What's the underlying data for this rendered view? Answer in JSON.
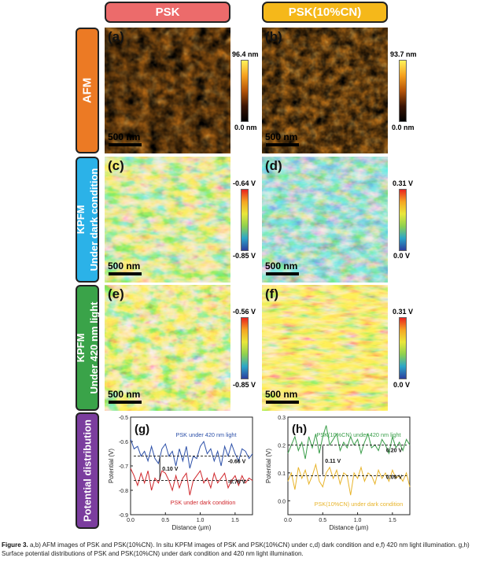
{
  "columns": {
    "left": "PSK",
    "right": "PSK(10%CN)"
  },
  "rows": {
    "afm": "AFM",
    "kpfm_dark_1": "KPFM",
    "kpfm_dark_2": "Under dark condition",
    "kpfm_light_1": "KPFM",
    "kpfm_light_2": "Under 420 nm light",
    "potential": "Potential distribution"
  },
  "panels": {
    "a": {
      "label": "(a)",
      "scale": "500 nm",
      "cb_top": "96.4 nm",
      "cb_bottom": "0.0 nm"
    },
    "b": {
      "label": "(b)",
      "scale": "500 nm",
      "cb_top": "93.7 nm",
      "cb_bottom": "0.0 nm"
    },
    "c": {
      "label": "(c)",
      "scale": "500 nm",
      "cb_top": "-0.64 V",
      "cb_bottom": "-0.85 V"
    },
    "d": {
      "label": "(d)",
      "scale": "500 nm",
      "cb_top": "0.31 V",
      "cb_bottom": "0.0 V"
    },
    "e": {
      "label": "(e)",
      "scale": "500 nm",
      "cb_top": "-0.56 V",
      "cb_bottom": "-0.85 V"
    },
    "f": {
      "label": "(f)",
      "scale": "500 nm",
      "cb_top": "0.31 V",
      "cb_bottom": "0.0 V"
    }
  },
  "colors": {
    "psk": "#ec6b6b",
    "cn": "#f5b81a",
    "afm": "#ec7a24",
    "dark": "#2bb2e8",
    "light": "#3aa349",
    "pot": "#7b3d9e"
  },
  "chart_data": [
    {
      "type": "line",
      "label": "(g)",
      "xlabel": "Distance (μm)",
      "ylabel": "Potential (V)",
      "xlim": [
        0.0,
        1.75
      ],
      "ylim": [
        -0.9,
        -0.5
      ],
      "xticks": [
        "0.0",
        "0.5",
        "1.0",
        "1.5"
      ],
      "yticks": [
        "-0.9",
        "-0.8",
        "-0.7",
        "-0.6",
        "-0.5"
      ],
      "series": [
        {
          "name": "PSK under 420 nm light",
          "color": "#2b4fa8",
          "mean": -0.66,
          "x": [
            0.0,
            0.05,
            0.1,
            0.15,
            0.2,
            0.25,
            0.3,
            0.35,
            0.4,
            0.45,
            0.5,
            0.55,
            0.6,
            0.65,
            0.7,
            0.75,
            0.8,
            0.85,
            0.9,
            0.95,
            1.0,
            1.05,
            1.1,
            1.15,
            1.2,
            1.25,
            1.3,
            1.35,
            1.4,
            1.45,
            1.5,
            1.55,
            1.6,
            1.65,
            1.7,
            1.75
          ],
          "y": [
            -0.59,
            -0.63,
            -0.62,
            -0.66,
            -0.64,
            -0.68,
            -0.62,
            -0.67,
            -0.69,
            -0.63,
            -0.61,
            -0.66,
            -0.64,
            -0.7,
            -0.63,
            -0.68,
            -0.62,
            -0.71,
            -0.66,
            -0.67,
            -0.62,
            -0.6,
            -0.65,
            -0.63,
            -0.68,
            -0.64,
            -0.7,
            -0.62,
            -0.66,
            -0.61,
            -0.65,
            -0.68,
            -0.63,
            -0.64,
            -0.67,
            -0.65
          ]
        },
        {
          "name": "PSK under dark condition",
          "color": "#d0262b",
          "mean": -0.76,
          "x": [
            0.0,
            0.05,
            0.1,
            0.15,
            0.2,
            0.25,
            0.3,
            0.35,
            0.4,
            0.45,
            0.5,
            0.55,
            0.6,
            0.65,
            0.7,
            0.75,
            0.8,
            0.85,
            0.9,
            0.95,
            1.0,
            1.05,
            1.1,
            1.15,
            1.2,
            1.25,
            1.3,
            1.35,
            1.4,
            1.45,
            1.5,
            1.55,
            1.6,
            1.65,
            1.7,
            1.75
          ],
          "y": [
            -0.71,
            -0.74,
            -0.78,
            -0.73,
            -0.77,
            -0.72,
            -0.8,
            -0.75,
            -0.77,
            -0.72,
            -0.73,
            -0.76,
            -0.8,
            -0.74,
            -0.79,
            -0.75,
            -0.73,
            -0.82,
            -0.76,
            -0.74,
            -0.72,
            -0.77,
            -0.75,
            -0.79,
            -0.73,
            -0.77,
            -0.75,
            -0.73,
            -0.79,
            -0.76,
            -0.74,
            -0.78,
            -0.74,
            -0.77,
            -0.75,
            -0.76
          ]
        }
      ],
      "annotations": {
        "light_mean": "-0.66 V",
        "dark_mean": "-0.76 V",
        "delta": "0.10 V"
      }
    },
    {
      "type": "line",
      "label": "(h)",
      "xlabel": "Distance (μm)",
      "ylabel": "Potential (V)",
      "xlim": [
        0.0,
        1.75
      ],
      "ylim": [
        -0.05,
        0.3
      ],
      "xticks": [
        "0.0",
        "0.5",
        "1.0",
        "1.5"
      ],
      "yticks": [
        "0.0",
        "0.1",
        "0.2",
        "0.3"
      ],
      "series": [
        {
          "name": "PSK(10%CN) under 420 nm light",
          "color": "#3a9e4a",
          "mean": 0.2,
          "x": [
            0.0,
            0.05,
            0.1,
            0.15,
            0.2,
            0.25,
            0.3,
            0.35,
            0.4,
            0.45,
            0.5,
            0.55,
            0.6,
            0.65,
            0.7,
            0.75,
            0.8,
            0.85,
            0.9,
            0.95,
            1.0,
            1.05,
            1.1,
            1.15,
            1.2,
            1.25,
            1.3,
            1.35,
            1.4,
            1.45,
            1.5,
            1.55,
            1.6,
            1.65,
            1.7,
            1.75
          ],
          "y": [
            0.17,
            0.2,
            0.23,
            0.18,
            0.21,
            0.15,
            0.23,
            0.19,
            0.24,
            0.17,
            0.23,
            0.27,
            0.2,
            0.22,
            0.24,
            0.18,
            0.21,
            0.19,
            0.23,
            0.2,
            0.22,
            0.17,
            0.21,
            0.24,
            0.19,
            0.2,
            0.18,
            0.22,
            0.2,
            0.17,
            0.23,
            0.19,
            0.21,
            0.18,
            0.22,
            0.2
          ]
        },
        {
          "name": "PSK(10%CN) under dark condition",
          "color": "#e8b42a",
          "mean": 0.09,
          "x": [
            0.0,
            0.05,
            0.1,
            0.15,
            0.2,
            0.25,
            0.3,
            0.35,
            0.4,
            0.45,
            0.5,
            0.55,
            0.6,
            0.65,
            0.7,
            0.75,
            0.8,
            0.85,
            0.9,
            0.95,
            1.0,
            1.05,
            1.1,
            1.15,
            1.2,
            1.25,
            1.3,
            1.35,
            1.4,
            1.45,
            1.5,
            1.55,
            1.6,
            1.65,
            1.7,
            1.75
          ],
          "y": [
            0.07,
            0.1,
            0.04,
            0.12,
            0.08,
            0.11,
            0.06,
            0.09,
            0.13,
            0.07,
            0.05,
            0.1,
            0.12,
            0.08,
            0.11,
            0.06,
            0.1,
            0.09,
            0.02,
            0.1,
            0.08,
            0.12,
            0.07,
            0.1,
            0.09,
            0.06,
            0.11,
            0.08,
            0.1,
            0.07,
            0.11,
            0.08,
            0.09,
            0.07,
            0.1,
            0.05
          ]
        }
      ],
      "annotations": {
        "light_mean": "0.20 V",
        "dark_mean": "0.09 V",
        "delta": "0.11 V"
      }
    }
  ],
  "caption": {
    "fig": "Figure 3.",
    "text": "a,b) AFM images of PSK and PSK(10%CN). In situ KPFM images of PSK and PSK(10%CN) under c,d) dark condition and e,f) 420 nm light illumination. g,h) Surface potential distributions of PSK and PSK(10%CN) under dark condition and 420 nm light illumination."
  }
}
